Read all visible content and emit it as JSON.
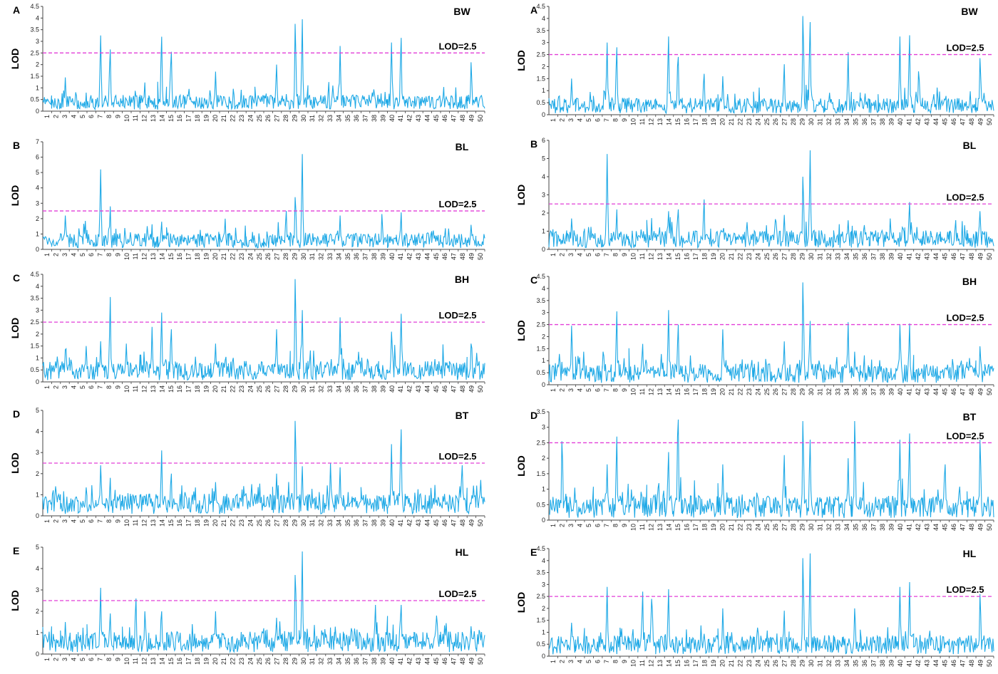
{
  "figure": {
    "chromosomes": [
      "1",
      "2",
      "3",
      "4",
      "5",
      "6",
      "7",
      "8",
      "9",
      "10",
      "11",
      "12",
      "13",
      "14",
      "15",
      "16",
      "17",
      "18",
      "19",
      "20",
      "21",
      "22",
      "23",
      "24",
      "25",
      "26",
      "27",
      "28",
      "29",
      "30",
      "31",
      "32",
      "33",
      "34",
      "35",
      "36",
      "37",
      "38",
      "39",
      "40",
      "41",
      "42",
      "43",
      "44",
      "45",
      "46",
      "47",
      "48",
      "49",
      "50"
    ],
    "ylabel": "LOD",
    "threshold_label": "LOD=2.5",
    "threshold_value": 2.5,
    "line_color": "#1fa9e6",
    "threshold_color": "#e23fd8"
  },
  "chart_data": [
    {
      "type": "line",
      "panel": "A",
      "trait": "BW",
      "column": "left",
      "ylim": [
        0,
        4.5
      ],
      "yticks": [
        "0",
        "0.5",
        "1",
        "1.5",
        "2",
        "2.5",
        "3",
        "3.5",
        "4",
        "4.5"
      ],
      "base": 0.4,
      "peaks": [
        [
          3,
          1.45
        ],
        [
          7,
          3.25
        ],
        [
          8,
          2.65
        ],
        [
          14,
          3.2
        ],
        [
          15,
          2.55
        ],
        [
          20,
          1.7
        ],
        [
          27,
          2.0
        ],
        [
          29,
          3.75
        ],
        [
          30,
          3.95
        ],
        [
          34,
          2.8
        ],
        [
          40,
          2.95
        ],
        [
          41,
          3.15
        ],
        [
          49,
          2.1
        ]
      ]
    },
    {
      "type": "line",
      "panel": "B",
      "trait": "BL",
      "column": "left",
      "ylim": [
        0,
        7
      ],
      "yticks": [
        "0",
        "1",
        "2",
        "3",
        "4",
        "5",
        "6",
        "7"
      ],
      "base": 0.6,
      "peaks": [
        [
          3,
          2.2
        ],
        [
          7,
          5.2
        ],
        [
          8,
          2.8
        ],
        [
          14,
          1.8
        ],
        [
          21,
          2.0
        ],
        [
          28,
          2.5
        ],
        [
          29,
          3.4
        ],
        [
          30,
          6.2
        ],
        [
          34,
          2.2
        ],
        [
          39,
          2.3
        ],
        [
          41,
          2.4
        ],
        [
          49,
          1.6
        ]
      ]
    },
    {
      "type": "line",
      "panel": "C",
      "trait": "BH",
      "column": "left",
      "ylim": [
        0,
        4.5
      ],
      "yticks": [
        "0",
        "0.5",
        "1",
        "1.5",
        "2",
        "2.5",
        "3",
        "3.5",
        "4",
        "4.5"
      ],
      "base": 0.5,
      "peaks": [
        [
          3,
          1.35
        ],
        [
          7,
          1.7
        ],
        [
          8,
          3.55
        ],
        [
          10,
          1.6
        ],
        [
          13,
          2.3
        ],
        [
          14,
          2.9
        ],
        [
          15,
          2.2
        ],
        [
          20,
          1.6
        ],
        [
          27,
          2.2
        ],
        [
          29,
          4.3
        ],
        [
          30,
          3.0
        ],
        [
          34,
          2.7
        ],
        [
          40,
          2.1
        ],
        [
          41,
          2.85
        ],
        [
          49,
          1.6
        ]
      ]
    },
    {
      "type": "line",
      "panel": "D",
      "trait": "BT",
      "column": "left",
      "ylim": [
        0,
        5
      ],
      "yticks": [
        "0",
        "1",
        "2",
        "3",
        "4",
        "5"
      ],
      "base": 0.6,
      "peaks": [
        [
          2,
          1.4
        ],
        [
          7,
          2.4
        ],
        [
          8,
          1.8
        ],
        [
          14,
          3.1
        ],
        [
          15,
          2.0
        ],
        [
          20,
          1.6
        ],
        [
          27,
          2.0
        ],
        [
          29,
          4.5
        ],
        [
          30,
          2.35
        ],
        [
          33,
          2.5
        ],
        [
          34,
          2.3
        ],
        [
          40,
          3.4
        ],
        [
          41,
          4.1
        ],
        [
          48,
          2.4
        ],
        [
          50,
          1.7
        ]
      ]
    },
    {
      "type": "line",
      "panel": "E",
      "trait": "HL",
      "column": "left",
      "ylim": [
        0,
        5
      ],
      "yticks": [
        "0",
        "1",
        "2",
        "3",
        "4",
        "5"
      ],
      "base": 0.6,
      "peaks": [
        [
          3,
          1.5
        ],
        [
          7,
          3.1
        ],
        [
          8,
          1.9
        ],
        [
          11,
          2.6
        ],
        [
          12,
          2.0
        ],
        [
          14,
          2.0
        ],
        [
          20,
          2.0
        ],
        [
          27,
          1.7
        ],
        [
          29,
          3.7
        ],
        [
          30,
          4.8
        ],
        [
          38,
          2.3
        ],
        [
          41,
          2.3
        ],
        [
          45,
          1.8
        ],
        [
          49,
          1.3
        ]
      ]
    },
    {
      "type": "line",
      "panel": "A",
      "trait": "BW",
      "column": "right",
      "ylim": [
        0,
        4.5
      ],
      "yticks": [
        "0",
        "0.5",
        "1",
        "1.5",
        "2",
        "2.5",
        "3",
        "3.5",
        "4",
        "4.5"
      ],
      "base": 0.4,
      "peaks": [
        [
          3,
          1.5
        ],
        [
          7,
          3.0
        ],
        [
          8,
          2.8
        ],
        [
          14,
          3.25
        ],
        [
          15,
          2.4
        ],
        [
          18,
          1.7
        ],
        [
          20,
          1.6
        ],
        [
          27,
          2.1
        ],
        [
          29,
          4.1
        ],
        [
          30,
          3.85
        ],
        [
          34,
          2.6
        ],
        [
          40,
          3.25
        ],
        [
          41,
          3.3
        ],
        [
          42,
          1.8
        ],
        [
          49,
          2.35
        ]
      ]
    },
    {
      "type": "line",
      "panel": "B",
      "trait": "BL",
      "column": "right",
      "ylim": [
        0,
        6
      ],
      "yticks": [
        "0",
        "1",
        "2",
        "3",
        "4",
        "5",
        "6"
      ],
      "base": 0.6,
      "peaks": [
        [
          3,
          1.7
        ],
        [
          7,
          5.25
        ],
        [
          8,
          2.2
        ],
        [
          14,
          2.1
        ],
        [
          15,
          2.2
        ],
        [
          18,
          2.75
        ],
        [
          27,
          1.9
        ],
        [
          29,
          4.0
        ],
        [
          30,
          5.45
        ],
        [
          34,
          1.6
        ],
        [
          39,
          1.7
        ],
        [
          41,
          2.6
        ],
        [
          49,
          2.1
        ]
      ]
    },
    {
      "type": "line",
      "panel": "C",
      "trait": "BH",
      "column": "right",
      "ylim": [
        0,
        4.5
      ],
      "yticks": [
        "0",
        "0.5",
        "1",
        "1.5",
        "2",
        "2.5",
        "3",
        "3.5",
        "4",
        "4.5"
      ],
      "base": 0.5,
      "peaks": [
        [
          3,
          2.45
        ],
        [
          8,
          3.05
        ],
        [
          11,
          1.7
        ],
        [
          14,
          3.1
        ],
        [
          15,
          2.5
        ],
        [
          20,
          2.3
        ],
        [
          27,
          1.8
        ],
        [
          29,
          4.25
        ],
        [
          30,
          2.65
        ],
        [
          34,
          2.6
        ],
        [
          40,
          2.5
        ],
        [
          41,
          2.55
        ],
        [
          49,
          1.6
        ]
      ]
    },
    {
      "type": "line",
      "panel": "D",
      "trait": "BT",
      "column": "right",
      "ylim": [
        0,
        3.5
      ],
      "yticks": [
        "0",
        "0.5",
        "1",
        "1.5",
        "2",
        "2.5",
        "3",
        "3.5"
      ],
      "base": 0.45,
      "peaks": [
        [
          2,
          2.55
        ],
        [
          7,
          1.8
        ],
        [
          8,
          2.7
        ],
        [
          14,
          2.2
        ],
        [
          15,
          3.25
        ],
        [
          20,
          1.8
        ],
        [
          27,
          2.1
        ],
        [
          29,
          3.2
        ],
        [
          30,
          2.6
        ],
        [
          34,
          2.0
        ],
        [
          35,
          3.2
        ],
        [
          40,
          2.6
        ],
        [
          41,
          2.8
        ],
        [
          45,
          1.8
        ],
        [
          49,
          2.6
        ]
      ]
    },
    {
      "type": "line",
      "panel": "E",
      "trait": "HL",
      "column": "right",
      "ylim": [
        0,
        4.5
      ],
      "yticks": [
        "0",
        "0.5",
        "1",
        "1.5",
        "2",
        "2.5",
        "3",
        "3.5",
        "4",
        "4.5"
      ],
      "base": 0.5,
      "peaks": [
        [
          3,
          1.4
        ],
        [
          7,
          2.9
        ],
        [
          11,
          2.7
        ],
        [
          12,
          2.4
        ],
        [
          14,
          2.8
        ],
        [
          20,
          2.0
        ],
        [
          27,
          1.9
        ],
        [
          29,
          4.1
        ],
        [
          30,
          4.3
        ],
        [
          35,
          2.0
        ],
        [
          40,
          2.9
        ],
        [
          41,
          3.1
        ],
        [
          49,
          2.6
        ]
      ]
    }
  ]
}
